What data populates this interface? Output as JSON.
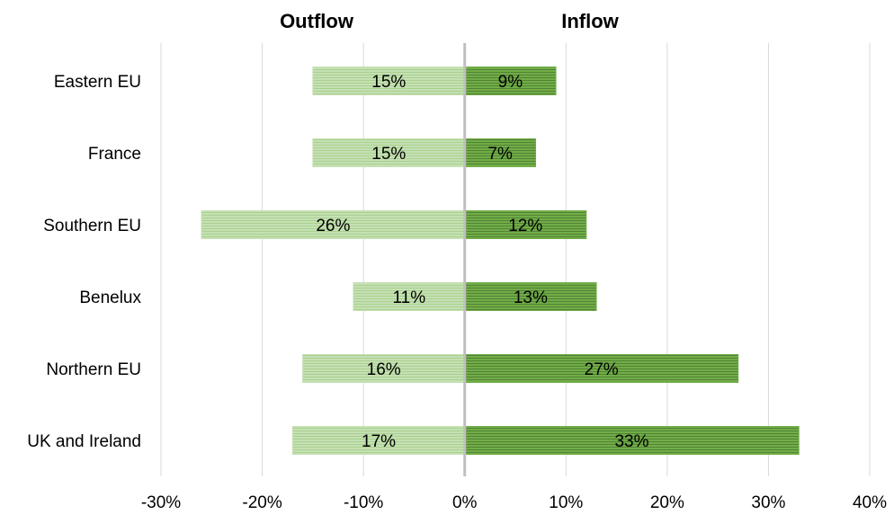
{
  "chart_data": {
    "type": "bar",
    "orientation": "horizontal",
    "layout": "diverging",
    "headers": {
      "left": "Outflow",
      "right": "Inflow"
    },
    "categories": [
      "Eastern EU",
      "France",
      "Southern EU",
      "Benelux",
      "Northern EU",
      "UK and Ireland"
    ],
    "series": [
      {
        "key": "outflow",
        "values": [
          15,
          15,
          26,
          11,
          16,
          17
        ],
        "labels": [
          "15%",
          "15%",
          "26%",
          "11%",
          "16%",
          "17%"
        ],
        "color": "#c5e0b4",
        "stripe": "#a9d18e",
        "direction": "negative"
      },
      {
        "key": "inflow",
        "values": [
          9,
          7,
          12,
          13,
          27,
          33
        ],
        "labels": [
          "9%",
          "7%",
          "12%",
          "13%",
          "27%",
          "33%"
        ],
        "color": "#70ad47",
        "stripe": "#548235",
        "direction": "positive"
      }
    ],
    "xlim": [
      -30,
      40
    ],
    "xticks": [
      -30,
      -20,
      -10,
      0,
      10,
      20,
      30,
      40
    ],
    "xtick_labels": [
      "-30%",
      "-20%",
      "-10%",
      "0%",
      "10%",
      "20%",
      "30%",
      "40%"
    ],
    "grid": true,
    "legend": "none"
  },
  "colors": {
    "gridline": "#d9d9d9",
    "axis": "#bfbfbf"
  }
}
